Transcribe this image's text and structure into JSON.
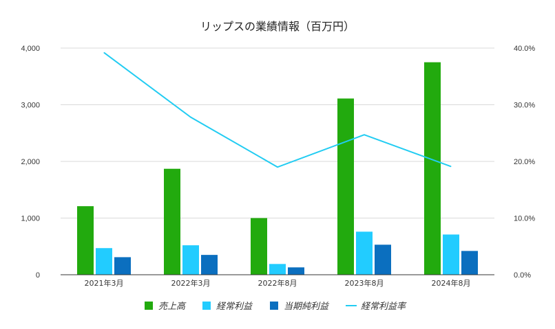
{
  "chart_data": {
    "type": "bar",
    "title": "リップスの業績情報（百万円）",
    "categories": [
      "2021年3月",
      "2022年3月",
      "2022年8月",
      "2023年8月",
      "2024年8月"
    ],
    "series": [
      {
        "name": "売上高",
        "type": "bar",
        "axis": "left",
        "color": "#22aa0e",
        "values": [
          1210,
          1870,
          1000,
          3110,
          3750
        ]
      },
      {
        "name": "経常利益",
        "type": "bar",
        "axis": "left",
        "color": "#22ccff",
        "values": [
          470,
          520,
          190,
          760,
          710
        ]
      },
      {
        "name": "当期純利益",
        "type": "bar",
        "axis": "left",
        "color": "#0b6fbf",
        "values": [
          310,
          350,
          130,
          530,
          420
        ]
      },
      {
        "name": "経常利益率",
        "type": "line",
        "axis": "right",
        "color": "#22ccf2",
        "values": [
          39.2,
          27.8,
          19.0,
          24.7,
          19.1
        ]
      }
    ],
    "y_left": {
      "min": 0,
      "max": 4000,
      "ticks": [
        "0",
        "1,000",
        "2,000",
        "3,000",
        "4,000"
      ]
    },
    "y_right": {
      "min": 0,
      "max": 40,
      "ticks": [
        "0.0%",
        "10.0%",
        "20.0%",
        "30.0%",
        "40.0%"
      ]
    },
    "grid": true,
    "legend_position": "bottom"
  }
}
